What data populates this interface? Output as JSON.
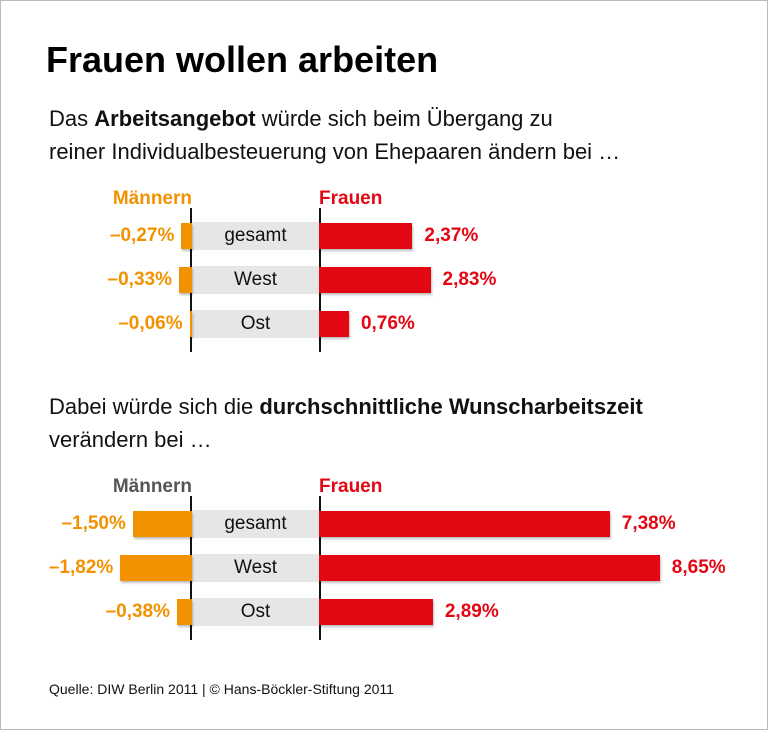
{
  "title": "Frauen wollen arbeiten",
  "source": "Quelle: DIW Berlin 2011 | © Hans-Böckler-Stiftung 2011",
  "chart_data": [
    {
      "type": "butterfly",
      "subtitle": [
        [
          "Das ",
          "Arbeitsangebot",
          " würde sich beim Übergang zu"
        ],
        [
          "reiner Individualbesteuerung von Ehepaaren ändern bei …"
        ]
      ],
      "categories": [
        "gesamt",
        "West",
        "Ost"
      ],
      "series": [
        {
          "name": "Männern",
          "color": "#f39200",
          "values": [
            -0.27,
            -0.33,
            -0.06
          ],
          "value_labels": [
            "–0,27%",
            "–0,33%",
            "–0,06%"
          ]
        },
        {
          "name": "Frauen",
          "color": "#e30613",
          "values": [
            2.37,
            2.83,
            0.76
          ],
          "value_labels": [
            "2,37%",
            "2,83%",
            "0,76%"
          ]
        }
      ]
    },
    {
      "type": "butterfly",
      "subtitle": [
        [
          "Dabei würde sich die ",
          "durchschnittliche Wunscharbeitszeit"
        ],
        [
          "verändern bei …"
        ]
      ],
      "categories": [
        "gesamt",
        "West",
        "Ost"
      ],
      "series": [
        {
          "name": "Männern",
          "color": "#f39200",
          "values": [
            -1.5,
            -1.82,
            -0.38
          ],
          "value_labels": [
            "–1,50%",
            "–1,82%",
            "–0,38%"
          ]
        },
        {
          "name": "Frauen",
          "color": "#e30613",
          "values": [
            7.38,
            8.65,
            2.89
          ],
          "value_labels": [
            "7,38%",
            "8,65%",
            "2,89%"
          ]
        }
      ]
    }
  ]
}
